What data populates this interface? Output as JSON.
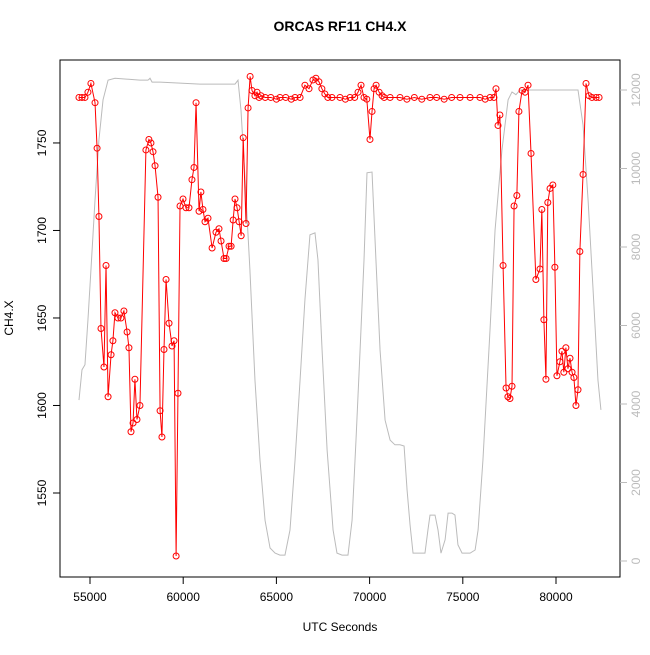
{
  "chart_data": {
    "type": "line",
    "title": "ORCAS RF11 CH4.X",
    "x_label": "UTC Seconds",
    "y_label": "CH4.X",
    "xlim": [
      53391,
      83433
    ],
    "ylim": [
      1502,
      1797.4
    ],
    "y2lim": [
      -408,
      12764
    ],
    "xticks": [
      55000,
      60000,
      65000,
      70000,
      75000,
      80000
    ],
    "yticks": [
      1550,
      1600,
      1650,
      1700,
      1750
    ],
    "y2ticks": [
      0,
      2000,
      4000,
      6000,
      8000,
      10000,
      12000
    ],
    "y2_color": "#bbbbbb",
    "series": [
      {
        "color": "#ff0000",
        "markers": true,
        "x": [
          54410,
          54570,
          54730,
          54890,
          55050,
          55270,
          55380,
          55480,
          55590,
          55750,
          55860,
          55970,
          56130,
          56230,
          56340,
          56500,
          56660,
          56820,
          56990,
          57090,
          57200,
          57310,
          57410,
          57520,
          57680,
          58000,
          58160,
          58270,
          58380,
          58490,
          58650,
          58760,
          58860,
          58970,
          59080,
          59240,
          59400,
          59510,
          59620,
          59720,
          59830,
          59990,
          60150,
          60310,
          60470,
          60580,
          60690,
          60850,
          60950,
          61060,
          61170,
          61330,
          61550,
          61760,
          61920,
          62030,
          62190,
          62300,
          62460,
          62570,
          62680,
          62780,
          62890,
          63000,
          63110,
          63220,
          63370,
          63480,
          63590,
          63690,
          63850,
          63960,
          64070,
          64170,
          64400,
          64700,
          65000,
          65190,
          65500,
          65800,
          66000,
          66270,
          66530,
          66750,
          66960,
          67120,
          67280,
          67440,
          67600,
          67760,
          67980,
          68410,
          68700,
          68950,
          69200,
          69380,
          69540,
          69700,
          69850,
          70020,
          70130,
          70240,
          70350,
          70510,
          70670,
          70780,
          71100,
          71630,
          72000,
          72400,
          72800,
          73240,
          73600,
          74000,
          74400,
          74850,
          75390,
          75920,
          76200,
          76460,
          76670,
          76780,
          76890,
          76990,
          77160,
          77320,
          77420,
          77530,
          77640,
          77750,
          77900,
          78010,
          78180,
          78340,
          78500,
          78660,
          78920,
          79140,
          79240,
          79350,
          79460,
          79560,
          79680,
          79830,
          79940,
          80050,
          80210,
          80320,
          80420,
          80530,
          80640,
          80750,
          80860,
          80960,
          81070,
          81180,
          81280,
          81450,
          81610,
          81770,
          81930,
          82150,
          82310
        ],
        "values": [
          1776,
          1776,
          1776,
          1779,
          1784,
          1773,
          1747,
          1708,
          1644,
          1622,
          1680,
          1605,
          1629,
          1637,
          1653,
          1650,
          1650,
          1654,
          1642,
          1633,
          1585,
          1590,
          1615,
          1592,
          1600,
          1746,
          1752,
          1750,
          1745,
          1737,
          1719,
          1597,
          1582,
          1632,
          1672,
          1647,
          1634,
          1637,
          1514,
          1607,
          1714,
          1718,
          1713,
          1713,
          1729,
          1736,
          1773,
          1711,
          1722,
          1712,
          1705,
          1707,
          1690,
          1699,
          1701,
          1694,
          1684,
          1684,
          1691,
          1691,
          1706,
          1718,
          1713,
          1705,
          1697,
          1753,
          1704,
          1770,
          1788,
          1780,
          1777,
          1779,
          1776,
          1777,
          1776,
          1776,
          1775,
          1776,
          1776,
          1775,
          1776,
          1776,
          1783,
          1781,
          1786,
          1787,
          1785,
          1781,
          1778,
          1776,
          1776,
          1776,
          1775,
          1776,
          1776,
          1779,
          1783,
          1776,
          1775,
          1752,
          1768,
          1781,
          1783,
          1779,
          1777,
          1776,
          1776,
          1776,
          1775,
          1776,
          1775,
          1776,
          1776,
          1775,
          1776,
          1776,
          1776,
          1776,
          1775,
          1776,
          1776,
          1781,
          1760,
          1766,
          1680,
          1610,
          1605,
          1604,
          1611,
          1714,
          1720,
          1768,
          1780,
          1779,
          1783,
          1744,
          1672,
          1678,
          1712,
          1649,
          1615,
          1716,
          1724,
          1726,
          1679,
          1617,
          1625,
          1631,
          1619,
          1633,
          1621,
          1627,
          1619,
          1616,
          1600,
          1609,
          1688,
          1732,
          1784,
          1777,
          1776,
          1776,
          1776
        ]
      },
      {
        "color": "#bbbbbb",
        "markers": false,
        "axis": "y2",
        "x": [
          54410,
          54570,
          54730,
          54890,
          55050,
          55270,
          55480,
          55700,
          55970,
          56340,
          57680,
          58110,
          58220,
          58330,
          58760,
          60900,
          62780,
          62940,
          63100,
          63320,
          63580,
          63850,
          64120,
          64390,
          64660,
          64930,
          65190,
          65460,
          65730,
          66000,
          66270,
          66530,
          66800,
          67070,
          67230,
          67450,
          67720,
          68040,
          68250,
          68520,
          68840,
          69060,
          69270,
          69490,
          69700,
          69860,
          70130,
          70340,
          70560,
          70830,
          71100,
          71360,
          71630,
          71850,
          72010,
          72170,
          72330,
          72600,
          72970,
          73130,
          73240,
          73510,
          73670,
          73830,
          74050,
          74210,
          74420,
          74580,
          74740,
          74960,
          75390,
          75660,
          75820,
          76080,
          76460,
          76730,
          77100,
          77430,
          77640,
          77850,
          78070,
          78610,
          80220,
          81180,
          81450,
          81720,
          81990,
          82250,
          82410
        ],
        "values": [
          4100,
          4870,
          5000,
          6140,
          7410,
          9200,
          10730,
          11750,
          12250,
          12300,
          12250,
          12250,
          12300,
          12200,
          12200,
          12150,
          12150,
          12250,
          11490,
          9710,
          7410,
          4610,
          2570,
          1040,
          330,
          200,
          150,
          150,
          790,
          2570,
          4610,
          6650,
          8310,
          8360,
          7670,
          5380,
          2830,
          790,
          200,
          150,
          150,
          1040,
          3080,
          5380,
          7670,
          9890,
          9910,
          7670,
          5380,
          3590,
          3080,
          2960,
          2960,
          2930,
          1810,
          920,
          200,
          200,
          200,
          790,
          1170,
          1170,
          790,
          200,
          540,
          1220,
          1220,
          1170,
          410,
          200,
          200,
          280,
          790,
          2570,
          5890,
          8430,
          10470,
          11750,
          11950,
          11880,
          12000,
          12000,
          12000,
          12000,
          11110,
          9200,
          6900,
          4610,
          3850
        ]
      }
    ]
  }
}
